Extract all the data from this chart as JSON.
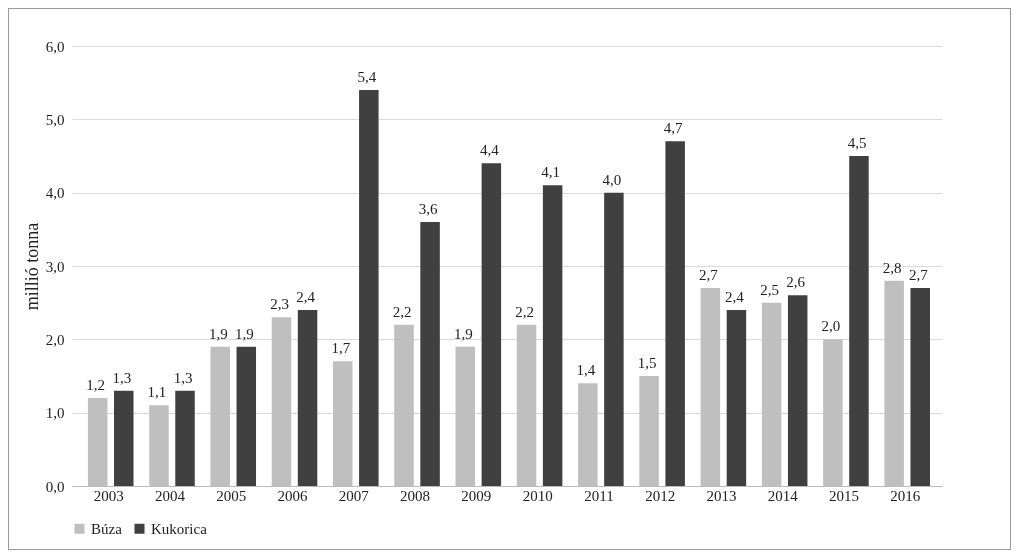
{
  "chart_data": {
    "type": "bar",
    "ylabel": "millió tonna",
    "categories": [
      "2003",
      "2004",
      "2005",
      "2006",
      "2007",
      "2008",
      "2009",
      "2010",
      "2011",
      "2012",
      "2013",
      "2014",
      "2015",
      "2016"
    ],
    "series": [
      {
        "name": "Búza",
        "color": "#bfbfbf",
        "values": [
          1.2,
          1.1,
          1.9,
          2.3,
          1.7,
          2.2,
          1.9,
          2.2,
          1.4,
          1.5,
          2.7,
          2.5,
          2.0,
          2.8
        ],
        "value_labels": [
          "1,2",
          "1,1",
          "1,9",
          "2,3",
          "1,7",
          "2,2",
          "1,9",
          "2,2",
          "1,4",
          "1,5",
          "2,7",
          "2,5",
          "2,0",
          "2,8"
        ]
      },
      {
        "name": "Kukorica",
        "color": "#404040",
        "values": [
          1.3,
          1.3,
          1.9,
          2.4,
          5.4,
          3.6,
          4.4,
          4.1,
          4.0,
          4.7,
          2.4,
          2.6,
          4.5,
          2.7
        ],
        "value_labels": [
          "1,3",
          "1,3",
          "1,9",
          "2,4",
          "5,4",
          "3,6",
          "4,4",
          "4,1",
          "4,0",
          "4,7",
          "2,4",
          "2,6",
          "4,5",
          "2,7"
        ]
      }
    ],
    "ylim": [
      0,
      6
    ],
    "yticks": [
      {
        "value": 0,
        "label": "0,0"
      },
      {
        "value": 1,
        "label": "1,0"
      },
      {
        "value": 2,
        "label": "2,0"
      },
      {
        "value": 3,
        "label": "3,0"
      },
      {
        "value": 4,
        "label": "4,0"
      },
      {
        "value": 5,
        "label": "5,0"
      },
      {
        "value": 6,
        "label": "6,0"
      }
    ],
    "grid": "y",
    "legend": "bottom"
  }
}
